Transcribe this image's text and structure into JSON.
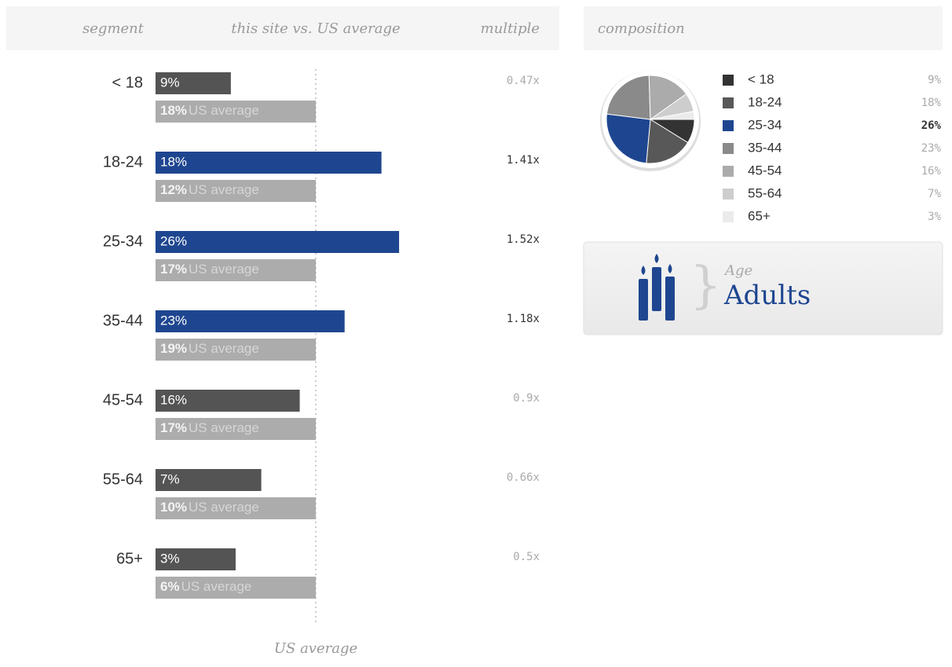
{
  "header": {
    "segment": "segment",
    "comparison": "this site vs. US average",
    "multiple": "multiple",
    "composition": "composition"
  },
  "us_average_text": "US average",
  "axis_label": "US average",
  "segments": [
    {
      "name": "< 18",
      "site": 9,
      "site_label": "9%",
      "us": 18,
      "us_label": "18%",
      "multiple": 0.47,
      "multiple_label": "0.47x",
      "color": "#545454"
    },
    {
      "name": "18-24",
      "site": 18,
      "site_label": "18%",
      "us": 12,
      "us_label": "12%",
      "multiple": 1.41,
      "multiple_label": "1.41x",
      "color": "#1e4690"
    },
    {
      "name": "25-34",
      "site": 26,
      "site_label": "26%",
      "us": 17,
      "us_label": "17%",
      "multiple": 1.52,
      "multiple_label": "1.52x",
      "color": "#1e4690"
    },
    {
      "name": "35-44",
      "site": 23,
      "site_label": "23%",
      "us": 19,
      "us_label": "19%",
      "multiple": 1.18,
      "multiple_label": "1.18x",
      "color": "#1e4690"
    },
    {
      "name": "45-54",
      "site": 16,
      "site_label": "16%",
      "us": 17,
      "us_label": "17%",
      "multiple": 0.9,
      "multiple_label": "0.9x",
      "color": "#545454"
    },
    {
      "name": "55-64",
      "site": 7,
      "site_label": "7%",
      "us": 10,
      "us_label": "10%",
      "multiple": 0.66,
      "multiple_label": "0.66x",
      "color": "#545454"
    },
    {
      "name": "65+",
      "site": 3,
      "site_label": "3%",
      "us": 6,
      "us_label": "6%",
      "multiple": 0.5,
      "multiple_label": "0.5x",
      "color": "#545454"
    }
  ],
  "chart_data": {
    "type": "pie",
    "categories": [
      "< 18",
      "18-24",
      "25-34",
      "35-44",
      "45-54",
      "55-64",
      "65+"
    ],
    "values": [
      9,
      18,
      26,
      23,
      16,
      7,
      3
    ],
    "value_labels": [
      "9%",
      "18%",
      "26%",
      "23%",
      "16%",
      "7%",
      "3%"
    ],
    "colors": [
      "#333333",
      "#585858",
      "#1e4690",
      "#8a8a8a",
      "#ababab",
      "#cdcdcd",
      "#ebebeb"
    ]
  },
  "card": {
    "caption": "Age",
    "title": "Adults"
  }
}
